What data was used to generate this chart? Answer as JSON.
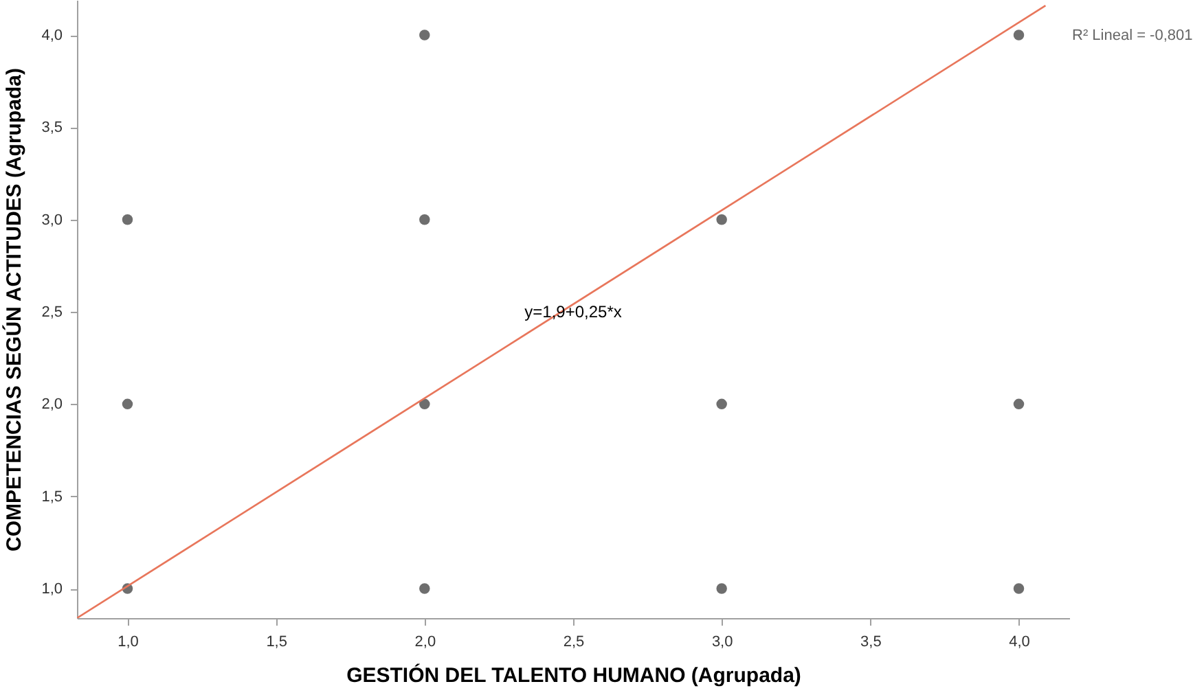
{
  "chart_data": {
    "type": "scatter",
    "xlabel": "GESTIÓN DEL TALENTO HUMANO (Agrupada)",
    "ylabel": "COMPETENCIAS SEGÚN ACTITUDES (Agrupada)",
    "xlim": [
      0.83,
      4.17
    ],
    "ylim": [
      0.84,
      4.19
    ],
    "xticks": [
      {
        "value": 1,
        "label": "1,0"
      },
      {
        "value": 1.5,
        "label": "1,5"
      },
      {
        "value": 2,
        "label": "2,0"
      },
      {
        "value": 2.5,
        "label": "2,5"
      },
      {
        "value": 3,
        "label": "3,0"
      },
      {
        "value": 3.5,
        "label": "3,5"
      },
      {
        "value": 4,
        "label": "4,0"
      }
    ],
    "yticks": [
      {
        "value": 1,
        "label": "1,0"
      },
      {
        "value": 1.5,
        "label": "1,5"
      },
      {
        "value": 2,
        "label": "2,0"
      },
      {
        "value": 2.5,
        "label": "2,5"
      },
      {
        "value": 3,
        "label": "3,0"
      },
      {
        "value": 3.5,
        "label": "3,5"
      },
      {
        "value": 4,
        "label": "4,0"
      }
    ],
    "grid": false,
    "series": [
      {
        "marker": "circle",
        "color": "#6e6e6e",
        "x": [
          1,
          1,
          1,
          2,
          2,
          2,
          2,
          3,
          3,
          3,
          4,
          4,
          4
        ],
        "values": [
          1,
          2,
          3,
          1,
          2,
          3,
          4,
          1,
          2,
          3,
          1,
          2,
          4
        ]
      },
      {
        "type": "line",
        "color": "#e8765b",
        "x": [
          0.83,
          4.09
        ],
        "values": [
          0.84,
          4.16
        ]
      }
    ],
    "annotations": [
      {
        "text": "y=1,9+0,25*x",
        "x": 2.5,
        "y": 2.5
      },
      "R² Lineal = -0,801"
    ]
  }
}
